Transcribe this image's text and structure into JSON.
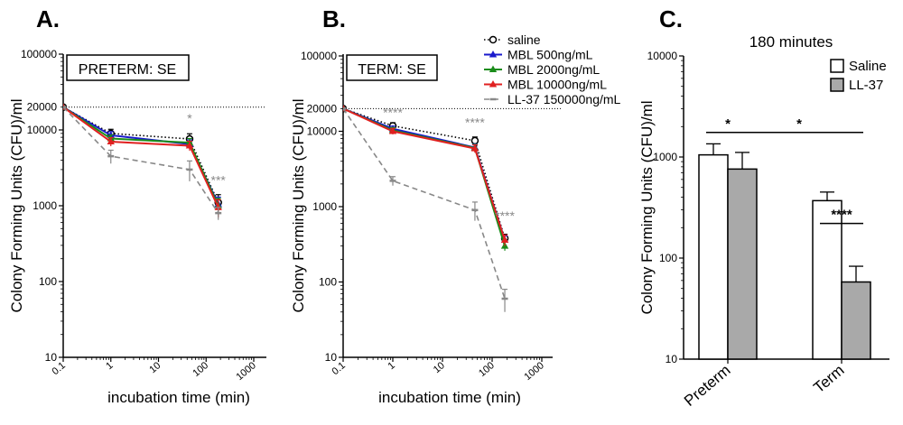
{
  "chart_data": [
    {
      "panel_label": "A.",
      "type": "line",
      "title": "PRETERM: SE",
      "xlabel": "incubation time (min)",
      "ylabel": "Colony Forming Units (CFU)/ml",
      "xscale": "log",
      "yscale": "log",
      "xlim": [
        0.1,
        1000
      ],
      "ylim": [
        10,
        100000
      ],
      "xticks": [
        "0.1",
        "1",
        "10",
        "100",
        "1000"
      ],
      "yticks": [
        "10",
        "100",
        "1000",
        "10000",
        "100000"
      ],
      "reference_line": {
        "y": 20000,
        "label": "20000"
      },
      "series": [
        {
          "name": "saline",
          "color": "#000000",
          "line": "dotted",
          "marker": "open-circle",
          "x": [
            0.1,
            1,
            45,
            180
          ],
          "y": [
            20000,
            9000,
            7600,
            1100
          ],
          "err": [
            0,
            1200,
            1300,
            300
          ]
        },
        {
          "name": "MBL 500ng/mL",
          "color": "#1a1acc",
          "line": "solid",
          "marker": "triangle",
          "x": [
            0.1,
            1,
            45,
            180
          ],
          "y": [
            20000,
            8500,
            6500,
            1050
          ],
          "err": [
            0,
            1000,
            900,
            250
          ]
        },
        {
          "name": "MBL 2000ng/mL",
          "color": "#1a8c1a",
          "line": "solid",
          "marker": "triangle",
          "x": [
            0.1,
            1,
            45,
            180
          ],
          "y": [
            20000,
            7700,
            6800,
            1000
          ],
          "err": [
            0,
            900,
            900,
            250
          ]
        },
        {
          "name": "MBL 10000ng/mL",
          "color": "#e02020",
          "line": "solid",
          "marker": "triangle",
          "x": [
            0.1,
            1,
            45,
            180
          ],
          "y": [
            20000,
            7000,
            6200,
            950
          ],
          "err": [
            0,
            900,
            900,
            250
          ]
        },
        {
          "name": "LL-37 150000ng/mL",
          "color": "#888888",
          "line": "dashed",
          "marker": "dash",
          "x": [
            0.1,
            1,
            45,
            180
          ],
          "y": [
            20000,
            4500,
            3000,
            800
          ],
          "err": [
            0,
            900,
            900,
            150
          ]
        }
      ],
      "annotations": [
        {
          "text": "*",
          "x": 45,
          "y": 12500
        },
        {
          "text": "***",
          "x": 180,
          "y": 1900
        }
      ]
    },
    {
      "panel_label": "B.",
      "type": "line",
      "title": "TERM: SE",
      "xlabel": "incubation time (min)",
      "ylabel": "Colony Forming Units (CFU)/ml",
      "xscale": "log",
      "yscale": "log",
      "xlim": [
        0.1,
        1000
      ],
      "ylim": [
        10,
        100000
      ],
      "xticks": [
        "0.1",
        "1",
        "10",
        "100",
        "1000"
      ],
      "yticks": [
        "10",
        "100",
        "1000",
        "10000",
        "100000"
      ],
      "reference_line": {
        "y": 20000,
        "label": "20000"
      },
      "legend_position": "top-right",
      "series": [
        {
          "name": "saline",
          "color": "#000000",
          "line": "dotted",
          "marker": "open-circle",
          "x": [
            0.1,
            1,
            45,
            180
          ],
          "y": [
            20000,
            11800,
            7500,
            380
          ],
          "err": [
            0,
            1200,
            900,
            50
          ]
        },
        {
          "name": "MBL 500ng/mL",
          "color": "#1a1acc",
          "line": "solid",
          "marker": "triangle",
          "x": [
            0.1,
            1,
            45,
            180
          ],
          "y": [
            20000,
            10800,
            6100,
            360
          ],
          "err": [
            0,
            900,
            700,
            50
          ]
        },
        {
          "name": "MBL 2000ng/mL",
          "color": "#1a8c1a",
          "line": "solid",
          "marker": "triangle",
          "x": [
            0.1,
            1,
            45,
            180
          ],
          "y": [
            20000,
            10300,
            6000,
            300
          ],
          "err": [
            0,
            900,
            700,
            40
          ]
        },
        {
          "name": "MBL 10000ng/mL",
          "color": "#e02020",
          "line": "solid",
          "marker": "triangle",
          "x": [
            0.1,
            1,
            45,
            180
          ],
          "y": [
            20000,
            10000,
            5900,
            360
          ],
          "err": [
            0,
            900,
            700,
            60
          ]
        },
        {
          "name": "LL-37 150000ng/mL",
          "color": "#888888",
          "line": "dashed",
          "marker": "dash",
          "x": [
            0.1,
            1,
            45,
            180
          ],
          "y": [
            20000,
            2200,
            900,
            60
          ],
          "err": [
            0,
            300,
            250,
            20
          ]
        }
      ],
      "annotations": [
        {
          "text": "****",
          "x": 1,
          "y": 15500
        },
        {
          "text": "****",
          "x": 45,
          "y": 11500
        },
        {
          "text": "****",
          "x": 180,
          "y": 660
        }
      ]
    },
    {
      "panel_label": "C.",
      "type": "bar",
      "title": "180 minutes",
      "xlabel": "",
      "ylabel": "Colony Forming Units (CFU)/ml",
      "yscale": "log",
      "ylim": [
        10,
        10000
      ],
      "yticks": [
        "10",
        "100",
        "1000",
        "10000"
      ],
      "categories": [
        "Preterm",
        "Term"
      ],
      "legend_position": "top-right",
      "series": [
        {
          "name": "Saline",
          "color": "#ffffff",
          "values": [
            1050,
            370
          ],
          "err": [
            300,
            80
          ]
        },
        {
          "name": "LL-37",
          "color": "#a9a9a9",
          "values": [
            760,
            58
          ],
          "err": [
            350,
            25
          ]
        }
      ],
      "significance": [
        {
          "text": "*",
          "between": [
            "Preterm Saline",
            "Preterm LL-37"
          ]
        },
        {
          "text": "*",
          "between": [
            "Preterm LL-37",
            "Term LL-37"
          ]
        },
        {
          "text": "****",
          "between": [
            "Term Saline",
            "Term LL-37"
          ]
        }
      ]
    }
  ]
}
